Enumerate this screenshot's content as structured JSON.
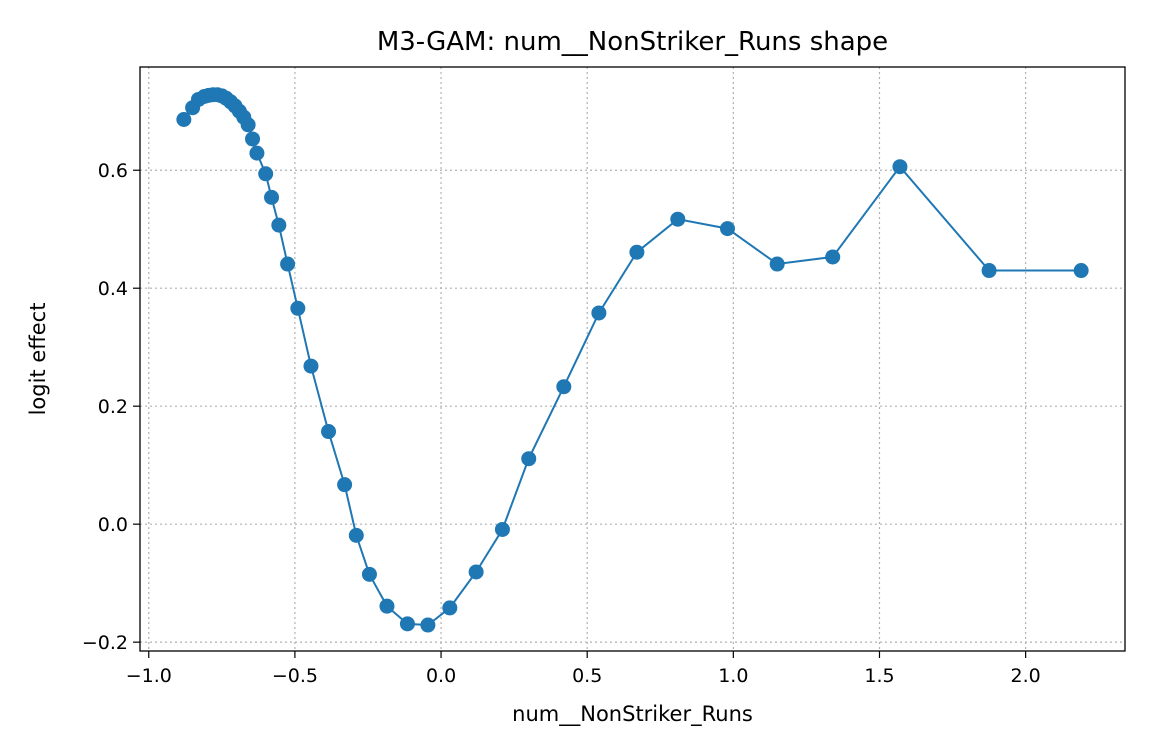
{
  "chart_data": {
    "type": "line",
    "title": "M3-GAM: num__NonStriker_Runs shape",
    "xlabel": "num__NonStriker_Runs",
    "ylabel": "logit effect",
    "xlim": [
      -1.03,
      2.34
    ],
    "ylim": [
      -0.215,
      0.775
    ],
    "xticks": [
      -1.0,
      -0.5,
      0.0,
      0.5,
      1.0,
      1.5,
      2.0
    ],
    "xtick_labels": [
      "−1.0",
      "−0.5",
      "0.0",
      "0.5",
      "1.0",
      "1.5",
      "2.0"
    ],
    "yticks": [
      -0.2,
      0.0,
      0.2,
      0.4,
      0.6
    ],
    "ytick_labels": [
      "−0.2",
      "0.0",
      "0.2",
      "0.4",
      "0.6"
    ],
    "grid": true,
    "grid_style": "dotted",
    "marker": "circle",
    "color": "#1f77b4",
    "series": [
      {
        "x": [
          -0.88,
          -0.85,
          -0.83,
          -0.81,
          -0.795,
          -0.78,
          -0.765,
          -0.75,
          -0.735,
          -0.72,
          -0.705,
          -0.69,
          -0.675,
          -0.66,
          -0.645,
          -0.63,
          -0.6,
          -0.58,
          -0.555,
          -0.525,
          -0.49,
          -0.445,
          -0.385,
          -0.33,
          -0.29,
          -0.245,
          -0.185,
          -0.115,
          -0.045,
          0.03,
          0.12,
          0.21,
          0.3,
          0.42,
          0.54,
          0.67,
          0.81,
          0.98,
          1.15,
          1.34,
          1.57,
          1.875,
          2.19
        ],
        "y": [
          0.686,
          0.706,
          0.72,
          0.725,
          0.727,
          0.728,
          0.728,
          0.726,
          0.722,
          0.716,
          0.709,
          0.7,
          0.69,
          0.677,
          0.653,
          0.629,
          0.594,
          0.554,
          0.507,
          0.441,
          0.366,
          0.268,
          0.157,
          0.067,
          -0.019,
          -0.085,
          -0.139,
          -0.169,
          -0.171,
          -0.142,
          -0.081,
          -0.009,
          0.111,
          0.233,
          0.358,
          0.461,
          0.517,
          0.501,
          0.441,
          0.453,
          0.606,
          0.43,
          0.43
        ]
      }
    ]
  }
}
